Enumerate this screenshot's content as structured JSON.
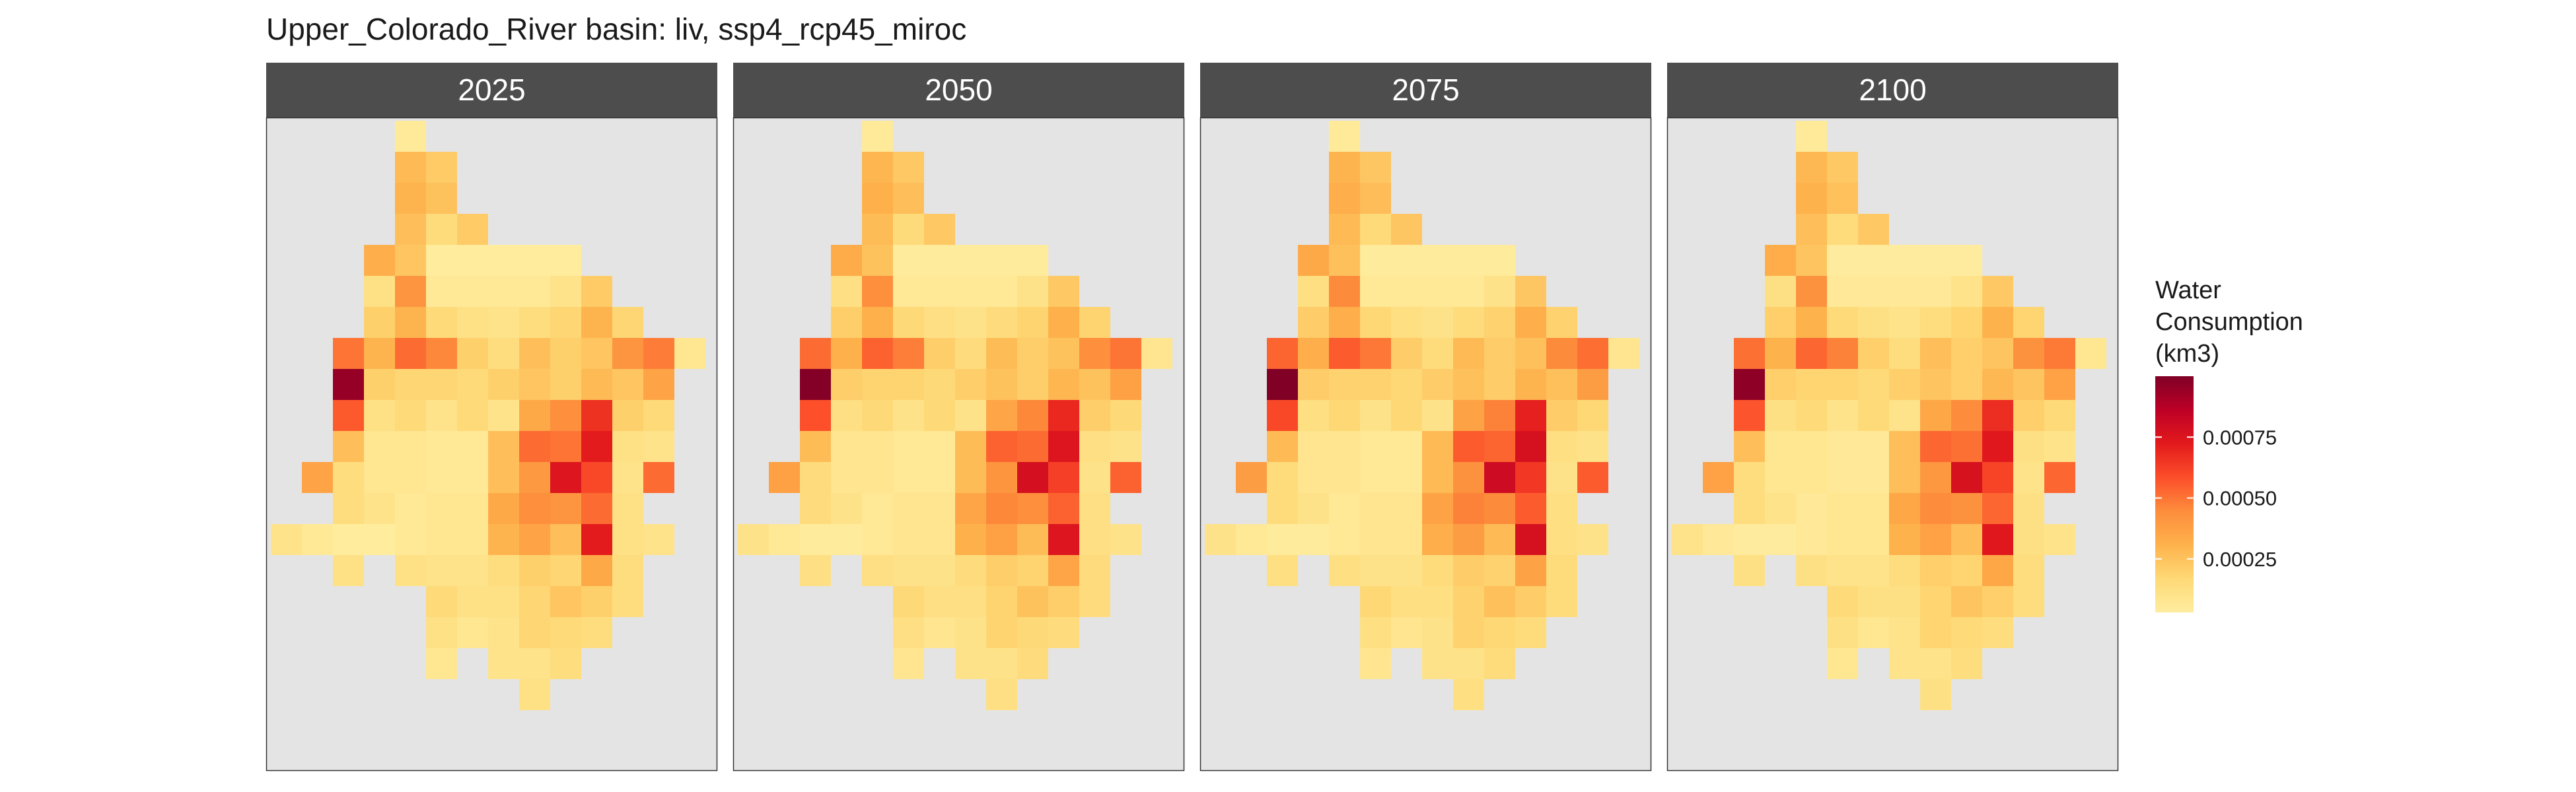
{
  "chart_data": {
    "type": "heatmap",
    "title": "Upper_Colorado_River basin: liv, ssp4_rcp45_miroc",
    "facets": [
      "2025",
      "2050",
      "2075",
      "2100"
    ],
    "grid": {
      "rows": 21,
      "cols": 14
    },
    "cells": [
      [
        0,
        4,
        5e-05
      ],
      [
        1,
        4,
        0.00028
      ],
      [
        1,
        5,
        0.00022
      ],
      [
        2,
        4,
        0.0003
      ],
      [
        2,
        5,
        0.00025
      ],
      [
        3,
        4,
        0.00026
      ],
      [
        3,
        5,
        0.00015
      ],
      [
        3,
        6,
        0.00022
      ],
      [
        4,
        3,
        0.00032
      ],
      [
        4,
        4,
        0.00024
      ],
      [
        4,
        5,
        4e-05
      ],
      [
        4,
        6,
        4e-05
      ],
      [
        4,
        7,
        4e-05
      ],
      [
        4,
        8,
        4e-05
      ],
      [
        4,
        9,
        4e-05
      ],
      [
        5,
        3,
        0.00012
      ],
      [
        5,
        4,
        0.00042
      ],
      [
        5,
        5,
        6e-05
      ],
      [
        5,
        6,
        6e-05
      ],
      [
        5,
        7,
        6e-05
      ],
      [
        5,
        8,
        6e-05
      ],
      [
        5,
        9,
        0.0001
      ],
      [
        5,
        10,
        0.00022
      ],
      [
        6,
        3,
        0.0002
      ],
      [
        6,
        4,
        0.0003
      ],
      [
        6,
        5,
        0.00016
      ],
      [
        6,
        6,
        0.00012
      ],
      [
        6,
        7,
        0.0001
      ],
      [
        6,
        8,
        0.00014
      ],
      [
        6,
        9,
        0.00018
      ],
      [
        6,
        10,
        0.0003
      ],
      [
        6,
        11,
        0.00018
      ],
      [
        7,
        2,
        0.0005
      ],
      [
        7,
        3,
        0.0003
      ],
      [
        7,
        4,
        0.00052
      ],
      [
        7,
        5,
        0.00046
      ],
      [
        7,
        6,
        0.0002
      ],
      [
        7,
        7,
        0.00014
      ],
      [
        7,
        8,
        0.00026
      ],
      [
        7,
        9,
        0.0002
      ],
      [
        7,
        10,
        0.00024
      ],
      [
        7,
        11,
        0.00042
      ],
      [
        7,
        12,
        0.00048
      ],
      [
        7,
        13,
        8e-05
      ],
      [
        8,
        2,
        0.00095
      ],
      [
        8,
        3,
        0.0002
      ],
      [
        8,
        4,
        0.00018
      ],
      [
        8,
        5,
        0.00018
      ],
      [
        8,
        6,
        0.00016
      ],
      [
        8,
        7,
        0.0002
      ],
      [
        8,
        8,
        0.00024
      ],
      [
        8,
        9,
        0.0002
      ],
      [
        8,
        10,
        0.00028
      ],
      [
        8,
        11,
        0.00024
      ],
      [
        8,
        12,
        0.00036
      ],
      [
        9,
        2,
        0.00056
      ],
      [
        9,
        3,
        0.00012
      ],
      [
        9,
        4,
        0.00016
      ],
      [
        9,
        5,
        0.0001
      ],
      [
        9,
        6,
        0.00016
      ],
      [
        9,
        7,
        0.0001
      ],
      [
        9,
        8,
        0.00034
      ],
      [
        9,
        9,
        0.00044
      ],
      [
        9,
        10,
        0.00066
      ],
      [
        9,
        11,
        0.0002
      ],
      [
        9,
        12,
        0.00016
      ],
      [
        10,
        2,
        0.00026
      ],
      [
        10,
        3,
        8e-05
      ],
      [
        10,
        4,
        8e-05
      ],
      [
        10,
        5,
        6e-05
      ],
      [
        10,
        6,
        6e-05
      ],
      [
        10,
        7,
        0.00026
      ],
      [
        10,
        8,
        0.00052
      ],
      [
        10,
        9,
        0.0005
      ],
      [
        10,
        10,
        0.00072
      ],
      [
        10,
        11,
        0.00012
      ],
      [
        10,
        12,
        0.0001
      ],
      [
        11,
        1,
        0.00036
      ],
      [
        11,
        2,
        0.00014
      ],
      [
        11,
        3,
        8e-05
      ],
      [
        11,
        4,
        8e-05
      ],
      [
        11,
        5,
        6e-05
      ],
      [
        11,
        6,
        6e-05
      ],
      [
        11,
        7,
        0.00026
      ],
      [
        11,
        8,
        0.0004
      ],
      [
        11,
        9,
        0.00075
      ],
      [
        11,
        10,
        0.0006
      ],
      [
        11,
        11,
        0.0001
      ],
      [
        11,
        12,
        0.00052
      ],
      [
        12,
        2,
        0.00014
      ],
      [
        12,
        3,
        0.0001
      ],
      [
        12,
        4,
        6e-05
      ],
      [
        12,
        5,
        8e-05
      ],
      [
        12,
        6,
        8e-05
      ],
      [
        12,
        7,
        0.00034
      ],
      [
        12,
        8,
        0.00044
      ],
      [
        12,
        9,
        0.00042
      ],
      [
        12,
        10,
        0.00052
      ],
      [
        12,
        11,
        0.00012
      ],
      [
        13,
        0,
        0.0001
      ],
      [
        13,
        1,
        6e-05
      ],
      [
        13,
        2,
        4e-05
      ],
      [
        13,
        3,
        4e-05
      ],
      [
        13,
        4,
        6e-05
      ],
      [
        13,
        5,
        8e-05
      ],
      [
        13,
        6,
        8e-05
      ],
      [
        13,
        7,
        0.0003
      ],
      [
        13,
        8,
        0.00036
      ],
      [
        13,
        9,
        0.00026
      ],
      [
        13,
        10,
        0.00072
      ],
      [
        13,
        11,
        0.00012
      ],
      [
        13,
        12,
        0.0001
      ],
      [
        14,
        2,
        0.00012
      ],
      [
        14,
        4,
        0.00012
      ],
      [
        14,
        5,
        0.0001
      ],
      [
        14,
        6,
        0.0001
      ],
      [
        14,
        7,
        0.00014
      ],
      [
        14,
        8,
        0.0002
      ],
      [
        14,
        9,
        0.00018
      ],
      [
        14,
        10,
        0.00034
      ],
      [
        14,
        11,
        0.00014
      ],
      [
        15,
        5,
        0.00016
      ],
      [
        15,
        6,
        0.00012
      ],
      [
        15,
        7,
        0.00012
      ],
      [
        15,
        8,
        0.00018
      ],
      [
        15,
        9,
        0.00024
      ],
      [
        15,
        10,
        0.0002
      ],
      [
        15,
        11,
        0.00014
      ],
      [
        16,
        5,
        0.00012
      ],
      [
        16,
        6,
        8e-05
      ],
      [
        16,
        7,
        0.0001
      ],
      [
        16,
        8,
        0.00018
      ],
      [
        16,
        9,
        0.00016
      ],
      [
        16,
        10,
        0.00014
      ],
      [
        17,
        5,
        8e-05
      ],
      [
        17,
        7,
        0.0001
      ],
      [
        17,
        8,
        0.0001
      ],
      [
        17,
        9,
        0.00014
      ],
      [
        18,
        8,
        0.00012
      ]
    ],
    "facet_factors": [
      1.0,
      1.04,
      1.07,
      1.02
    ],
    "color_scale": {
      "name": "YlOrRd",
      "stops": [
        "#ffeda0",
        "#fed976",
        "#feb24c",
        "#fd8d3c",
        "#fc4e2a",
        "#e31a1c",
        "#bd0026",
        "#800026"
      ],
      "domain": [
        3e-05,
        0.001
      ]
    },
    "legend": {
      "title_lines": [
        "Water",
        "Consumption",
        "(km3)"
      ],
      "ticks": [
        0.00025,
        0.0005,
        0.00075
      ],
      "tick_labels": [
        "0.00025",
        "0.00050",
        "0.00075"
      ],
      "placement": "right"
    },
    "grid_lines": false
  },
  "colors": {
    "panel_bg": "#e4e4e4",
    "strip_bg": "#4d4d4d",
    "strip_text": "#ffffff",
    "panel_border": "#333333"
  }
}
